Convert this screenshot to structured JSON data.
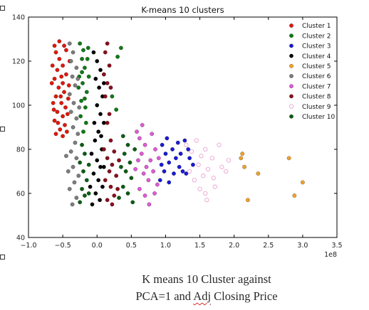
{
  "caption": {
    "line1": "K means 10 Cluster against",
    "line2_before": "PCA=1 and ",
    "line2_marked": "Adj",
    "line2_after": " Closing Price"
  },
  "chart_data": {
    "type": "scatter",
    "title": "K-means 10 clusters",
    "xlabel": "",
    "ylabel": "",
    "x_offset_label": "1e8",
    "xlim": [
      -1.0,
      3.5
    ],
    "ylim": [
      40,
      140
    ],
    "x_ticks": [
      "−1.0",
      "−0.5",
      "0.0",
      "0.5",
      "1.0",
      "1.5",
      "2.0",
      "2.5",
      "3.0",
      "3.5"
    ],
    "x_tick_values": [
      -1.0,
      -0.5,
      0.0,
      0.5,
      1.0,
      1.5,
      2.0,
      2.5,
      3.0,
      3.5
    ],
    "y_ticks": [
      "40",
      "60",
      "80",
      "100",
      "120",
      "140"
    ],
    "y_tick_values": [
      40,
      60,
      80,
      100,
      120,
      140
    ],
    "grid": false,
    "legend_position": "top-right",
    "series": [
      {
        "name": "Cluster 1",
        "color": "#e3170a",
        "fill": true,
        "points": [
          [
            -0.62,
            127
          ],
          [
            -0.6,
            124
          ],
          [
            -0.55,
            121
          ],
          [
            -0.5,
            118
          ],
          [
            -0.45,
            125
          ],
          [
            -0.58,
            116
          ],
          [
            -0.52,
            113
          ],
          [
            -0.62,
            112
          ],
          [
            -0.5,
            110
          ],
          [
            -0.56,
            108
          ],
          [
            -0.48,
            106
          ],
          [
            -0.6,
            104
          ],
          [
            -0.52,
            101
          ],
          [
            -0.46,
            99
          ],
          [
            -0.58,
            97
          ],
          [
            -0.5,
            95
          ],
          [
            -0.62,
            93
          ],
          [
            -0.47,
            91
          ],
          [
            -0.54,
            89
          ],
          [
            -0.6,
            87
          ],
          [
            -0.5,
            86
          ],
          [
            -0.44,
            88
          ],
          [
            -0.65,
            118
          ],
          [
            -0.4,
            120
          ],
          [
            -0.45,
            114
          ],
          [
            -0.42,
            103
          ],
          [
            -0.43,
            96
          ],
          [
            -0.64,
            101
          ],
          [
            -0.66,
            110
          ],
          [
            -0.55,
            129
          ],
          [
            -0.48,
            127
          ],
          [
            -0.57,
            92
          ],
          [
            -0.53,
            104
          ],
          [
            -0.41,
            109
          ],
          [
            -0.63,
            98
          ]
        ]
      },
      {
        "name": "Cluster 2",
        "color": "#0f7a17",
        "fill": true,
        "points": [
          [
            -0.25,
            128
          ],
          [
            -0.2,
            125
          ],
          [
            -0.22,
            121
          ],
          [
            -0.18,
            117
          ],
          [
            -0.26,
            113
          ],
          [
            -0.21,
            110
          ],
          [
            -0.15,
            106
          ],
          [
            -0.23,
            102
          ],
          [
            -0.17,
            99
          ],
          [
            -0.24,
            95
          ],
          [
            -0.12,
            113
          ],
          [
            -0.14,
            121
          ],
          [
            -0.16,
            92
          ],
          [
            -0.2,
            88
          ],
          [
            -0.27,
            108
          ],
          [
            -0.13,
            126
          ],
          [
            0.35,
            126
          ],
          [
            0.3,
            122
          ],
          [
            0.22,
            104
          ],
          [
            0.28,
            98
          ],
          [
            -0.22,
            115
          ],
          [
            -0.18,
            103
          ]
        ]
      },
      {
        "name": "Cluster 3",
        "color": "#1a1ad6",
        "fill": true,
        "points": [
          [
            0.95,
            82
          ],
          [
            1.0,
            78
          ],
          [
            1.05,
            74
          ],
          [
            0.98,
            70
          ],
          [
            1.1,
            80
          ],
          [
            1.15,
            76
          ],
          [
            1.2,
            72
          ],
          [
            1.28,
            84
          ],
          [
            1.33,
            80
          ],
          [
            1.25,
            70
          ],
          [
            1.35,
            76
          ],
          [
            1.4,
            73
          ],
          [
            0.92,
            66
          ],
          [
            1.05,
            65
          ],
          [
            1.12,
            69
          ],
          [
            1.22,
            78
          ],
          [
            1.3,
            69
          ],
          [
            1.02,
            85
          ],
          [
            0.94,
            73
          ],
          [
            1.18,
            83
          ]
        ]
      },
      {
        "name": "Cluster 4",
        "color": "#000000",
        "fill": true,
        "points": [
          [
            -0.05,
            124
          ],
          [
            0.0,
            120
          ],
          [
            0.05,
            116
          ],
          [
            -0.02,
            112
          ],
          [
            0.03,
            108
          ],
          [
            0.08,
            104
          ],
          [
            0.0,
            100
          ],
          [
            0.05,
            96
          ],
          [
            0.1,
            92
          ],
          [
            0.02,
            88
          ],
          [
            -0.03,
            84
          ],
          [
            0.07,
            80
          ],
          [
            -0.08,
            78
          ],
          [
            0.0,
            75
          ],
          [
            0.05,
            72
          ],
          [
            -0.05,
            69
          ],
          [
            0.02,
            66
          ],
          [
            0.08,
            63
          ],
          [
            -0.02,
            60
          ],
          [
            0.04,
            57
          ],
          [
            -0.07,
            55
          ],
          [
            0.1,
            72
          ],
          [
            -0.1,
            63
          ],
          [
            0.06,
            86
          ],
          [
            0.1,
            110
          ],
          [
            -0.04,
            92
          ]
        ]
      },
      {
        "name": "Cluster 5",
        "color": "#f0a22e",
        "fill": true,
        "points": [
          [
            2.1,
            76
          ],
          [
            2.15,
            72
          ],
          [
            2.35,
            69
          ],
          [
            2.2,
            57
          ],
          [
            2.8,
            76
          ],
          [
            2.88,
            59
          ],
          [
            3.0,
            65
          ],
          [
            2.12,
            78
          ]
        ]
      },
      {
        "name": "Cluster 6",
        "color": "#7d7d7d",
        "fill": true,
        "points": [
          [
            -0.4,
            128
          ],
          [
            -0.35,
            124
          ],
          [
            -0.38,
            120
          ],
          [
            -0.3,
            117
          ],
          [
            -0.36,
            113
          ],
          [
            -0.32,
            109
          ],
          [
            -0.4,
            105
          ],
          [
            -0.34,
            101
          ],
          [
            -0.38,
            97
          ],
          [
            -0.3,
            94
          ],
          [
            -0.35,
            90
          ],
          [
            -0.28,
            87
          ],
          [
            -0.32,
            83
          ],
          [
            -0.38,
            79
          ],
          [
            -0.3,
            76
          ],
          [
            -0.35,
            72
          ],
          [
            -0.27,
            68
          ],
          [
            -0.33,
            65
          ],
          [
            -0.4,
            62
          ],
          [
            -0.3,
            58
          ],
          [
            -0.36,
            55
          ],
          [
            -0.45,
            77
          ],
          [
            -0.42,
            70
          ],
          [
            -0.28,
            112
          ],
          [
            -0.26,
            99
          ]
        ]
      },
      {
        "name": "Cluster 7",
        "color": "#e05ad7",
        "fill": true,
        "points": [
          [
            0.58,
            88
          ],
          [
            0.62,
            85
          ],
          [
            0.7,
            82
          ],
          [
            0.65,
            78
          ],
          [
            0.6,
            75
          ],
          [
            0.72,
            72
          ],
          [
            0.68,
            69
          ],
          [
            0.75,
            66
          ],
          [
            0.62,
            62
          ],
          [
            0.7,
            59
          ],
          [
            0.8,
            87
          ],
          [
            0.85,
            80
          ],
          [
            0.78,
            75
          ],
          [
            0.82,
            70
          ],
          [
            0.88,
            64
          ],
          [
            0.66,
            91
          ],
          [
            0.76,
            55
          ],
          [
            0.56,
            71
          ],
          [
            0.9,
            76
          ],
          [
            0.84,
            60
          ]
        ]
      },
      {
        "name": "Cluster 8",
        "color": "#8b0d1c",
        "fill": true,
        "points": [
          [
            0.15,
            128
          ],
          [
            0.12,
            124
          ],
          [
            0.18,
            118
          ],
          [
            0.1,
            114
          ],
          [
            0.15,
            110
          ],
          [
            0.12,
            104
          ],
          [
            0.18,
            96
          ],
          [
            0.15,
            92
          ],
          [
            0.2,
            84
          ],
          [
            0.25,
            79
          ],
          [
            0.15,
            76
          ],
          [
            0.22,
            73
          ],
          [
            0.18,
            70
          ],
          [
            0.28,
            68
          ],
          [
            0.12,
            66
          ],
          [
            0.2,
            63
          ],
          [
            0.25,
            59
          ],
          [
            0.15,
            57
          ],
          [
            0.22,
            55
          ],
          [
            0.3,
            62
          ],
          [
            0.32,
            75
          ],
          [
            0.1,
            80
          ],
          [
            0.2,
            108
          ]
        ]
      },
      {
        "name": "Cluster 9",
        "color": "#eba3d3",
        "fill": false,
        "points": [
          [
            1.3,
            82
          ],
          [
            1.38,
            79
          ],
          [
            1.45,
            84
          ],
          [
            1.52,
            77
          ],
          [
            1.48,
            73
          ],
          [
            1.58,
            80
          ],
          [
            1.62,
            71
          ],
          [
            1.55,
            68
          ],
          [
            1.68,
            76
          ],
          [
            1.72,
            63
          ],
          [
            1.78,
            82
          ],
          [
            1.82,
            72
          ],
          [
            1.42,
            66
          ],
          [
            1.5,
            62
          ],
          [
            1.6,
            57
          ],
          [
            1.88,
            70
          ],
          [
            1.35,
            70
          ],
          [
            1.7,
            67
          ],
          [
            1.92,
            75
          ],
          [
            1.58,
            60
          ]
        ]
      },
      {
        "name": "Cluster 10",
        "color": "#0a5e12",
        "fill": true,
        "points": [
          [
            -0.22,
            82
          ],
          [
            -0.18,
            78
          ],
          [
            -0.25,
            74
          ],
          [
            -0.2,
            70
          ],
          [
            -0.15,
            66
          ],
          [
            -0.22,
            62
          ],
          [
            -0.18,
            59
          ],
          [
            -0.25,
            56
          ],
          [
            -0.12,
            73
          ],
          [
            0.38,
            86
          ],
          [
            0.45,
            82
          ],
          [
            0.4,
            78
          ],
          [
            0.48,
            74
          ],
          [
            0.42,
            70
          ],
          [
            0.5,
            67
          ],
          [
            0.38,
            63
          ],
          [
            0.45,
            60
          ],
          [
            0.52,
            56
          ],
          [
            0.35,
            72
          ],
          [
            0.55,
            80
          ],
          [
            0.32,
            58
          ],
          [
            -0.12,
            60
          ]
        ]
      }
    ]
  }
}
